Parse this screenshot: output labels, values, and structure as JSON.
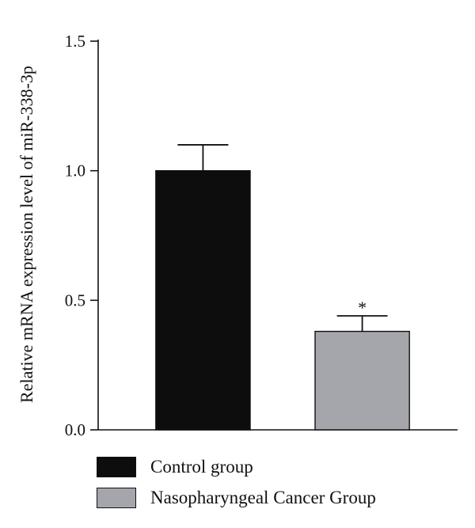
{
  "chart_data": {
    "type": "bar",
    "title": "",
    "xlabel": "",
    "ylabel": "Relative mRNA expression level of miR-338-3p",
    "ylim": [
      0,
      1.5
    ],
    "yticks": [
      "0.0",
      "0.5",
      "1.0",
      "1.5"
    ],
    "categories": [
      "Control group",
      "Nasopharyngeal Cancer Group"
    ],
    "values": [
      1.0,
      0.38
    ],
    "errors": [
      0.1,
      0.06
    ],
    "annotations": [
      "",
      "*"
    ],
    "colors": [
      "#0d0d0d",
      "#a5a6ab"
    ],
    "legend_placement": "bottom"
  },
  "legend": {
    "items": [
      {
        "label": "Control group",
        "color": "#0d0d0d"
      },
      {
        "label": "Nasopharyngeal Cancer Group",
        "color": "#a5a6ab"
      }
    ]
  }
}
